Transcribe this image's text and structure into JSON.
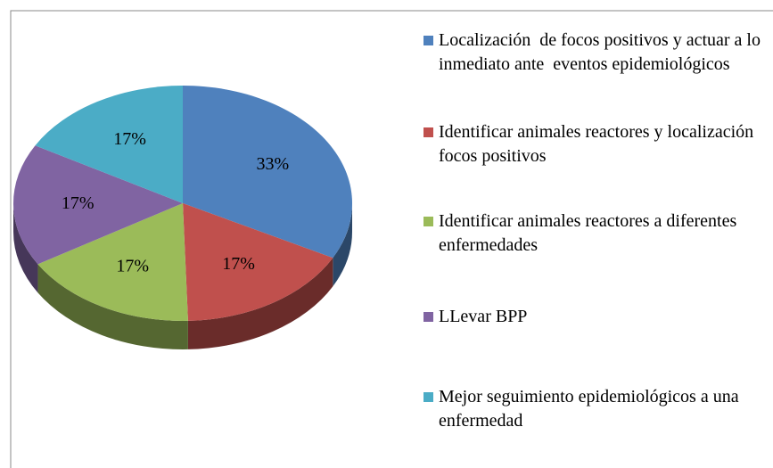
{
  "chart_data": {
    "type": "pie",
    "categories": [
      "Localización  de focos positivos y actuar a lo inmediato ante  eventos epidemiológicos",
      "Identificar animales reactores y localización focos positivos",
      "Identificar animales reactores a diferentes enfermedades",
      "LLevar BPP",
      "Mejor seguimiento epidemiológicos a una enfermedad"
    ],
    "values": [
      33,
      17,
      17,
      17,
      17
    ],
    "value_labels": [
      "33%",
      "17%",
      "17%",
      "17%",
      "17%"
    ],
    "colors": [
      "#4f81bd",
      "#c0504d",
      "#9bbb59",
      "#8064a2",
      "#4bacc6"
    ],
    "legend": "right"
  }
}
